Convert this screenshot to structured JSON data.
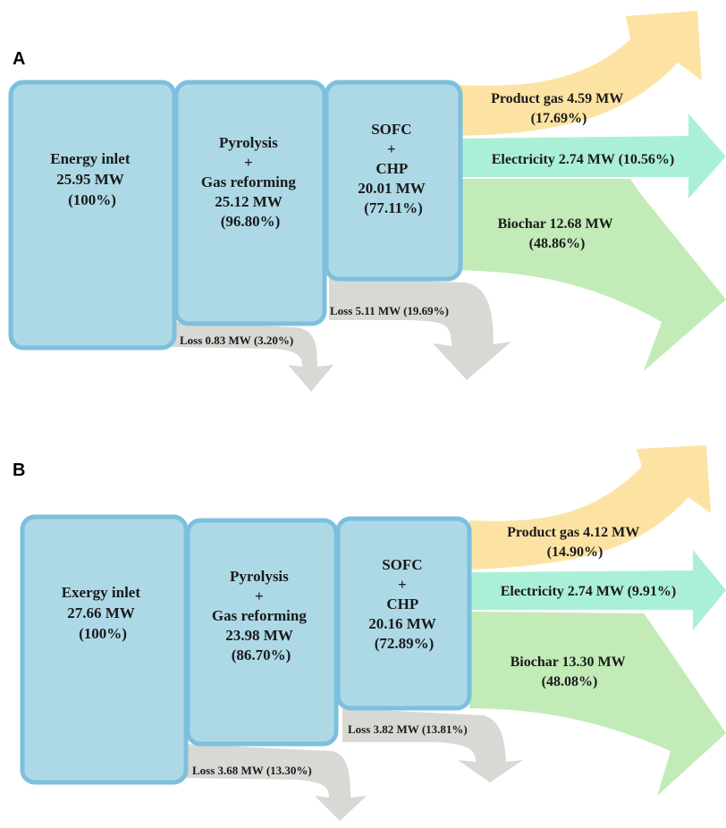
{
  "panels": [
    {
      "label": "A",
      "inlet": {
        "lines": [
          "Energy inlet",
          "25.95 MW",
          "(100%)"
        ]
      },
      "stage1": {
        "lines": [
          "Pyrolysis",
          "+",
          "Gas reforming",
          "25.12 MW",
          "(96.80%)"
        ]
      },
      "stage2": {
        "lines": [
          "SOFC",
          "+",
          "CHP",
          "20.01 MW",
          "(77.11%)"
        ]
      },
      "product_gas": {
        "lines": [
          "Product gas 4.59 MW",
          "(17.69%)"
        ]
      },
      "electricity": {
        "lines": [
          "Electricity 2.74 MW (10.56%)"
        ]
      },
      "biochar": {
        "lines": [
          "Biochar 12.68 MW",
          "(48.86%)"
        ]
      },
      "loss1": "Loss 0.83 MW (3.20%)",
      "loss2": "Loss 5.11 MW (19.69%)",
      "colors": {
        "box": "#add9e7",
        "border": "#7cc0dd",
        "product_gas": "#fde3a3",
        "electricity": "#aaf0d7",
        "biochar": "#c2ebb8",
        "loss": "#d8d8d5"
      }
    },
    {
      "label": "B",
      "inlet": {
        "lines": [
          "Exergy inlet",
          "27.66 MW",
          "(100%)"
        ]
      },
      "stage1": {
        "lines": [
          "Pyrolysis",
          "+",
          "Gas reforming",
          "23.98 MW",
          "(86.70%)"
        ]
      },
      "stage2": {
        "lines": [
          "SOFC",
          "+",
          "CHP",
          "20.16 MW",
          "(72.89%)"
        ]
      },
      "product_gas": {
        "lines": [
          "Product gas 4.12 MW",
          "(14.90%)"
        ]
      },
      "electricity": {
        "lines": [
          "Electricity 2.74 MW (9.91%)"
        ]
      },
      "biochar": {
        "lines": [
          "Biochar 13.30 MW",
          "(48.08%)"
        ]
      },
      "loss1": "Loss 3.68 MW (13.30%)",
      "loss2": "Loss 3.82 MW (13.81%)",
      "colors": {
        "box": "#add9e7",
        "border": "#7cc0dd",
        "product_gas": "#fde3a3",
        "electricity": "#aaf0d7",
        "biochar": "#c2ebb8",
        "loss": "#d8d8d5"
      }
    }
  ]
}
